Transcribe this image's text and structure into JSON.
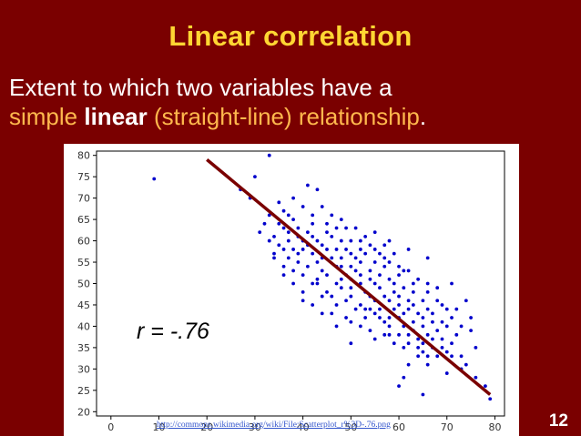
{
  "slide": {
    "title": "Linear correlation",
    "subtitle_part1": "Extent to which two variables have a",
    "subtitle_simple": "simple ",
    "subtitle_linear": "linear",
    "subtitle_rest": " (straight-line) relationship",
    "subtitle_period": ".",
    "r_label": "r = -.76",
    "source": "http://commons.wikimedia.org/wiki/File:Scatterplot_r%3D-.76.png",
    "slide_number": "12",
    "colors": {
      "background": "#7a0000",
      "title": "#ffd633",
      "accent": "#ffb84d",
      "points": "#0000cc",
      "fit_line": "#7a0000"
    }
  },
  "chart_data": {
    "type": "scatter",
    "xlim": [
      -3,
      82
    ],
    "ylim": [
      19,
      81
    ],
    "xticks": [
      0,
      10,
      20,
      30,
      40,
      50,
      60,
      70,
      80
    ],
    "yticks": [
      20,
      25,
      30,
      35,
      40,
      45,
      50,
      55,
      60,
      65,
      70,
      75,
      80
    ],
    "grid": false,
    "fit_line": {
      "x": [
        20,
        79
      ],
      "y": [
        79,
        24
      ]
    },
    "points": [
      [
        9,
        74.5
      ],
      [
        33,
        80
      ],
      [
        30,
        75
      ],
      [
        27,
        72
      ],
      [
        29,
        70
      ],
      [
        35,
        69
      ],
      [
        33,
        66
      ],
      [
        32,
        64
      ],
      [
        38,
        65
      ],
      [
        41,
        73
      ],
      [
        43,
        72
      ],
      [
        40,
        68
      ],
      [
        42,
        66
      ],
      [
        36,
        63
      ],
      [
        34,
        61
      ],
      [
        35,
        59
      ],
      [
        37,
        62
      ],
      [
        39,
        61
      ],
      [
        38,
        58
      ],
      [
        37,
        56
      ],
      [
        36,
        54
      ],
      [
        39,
        55
      ],
      [
        40,
        58
      ],
      [
        40,
        60
      ],
      [
        41,
        62
      ],
      [
        42,
        64
      ],
      [
        43,
        60
      ],
      [
        42,
        57
      ],
      [
        44,
        59
      ],
      [
        44,
        56
      ],
      [
        45,
        58
      ],
      [
        45,
        62
      ],
      [
        46,
        61
      ],
      [
        47,
        63
      ],
      [
        47,
        58
      ],
      [
        48,
        60
      ],
      [
        48,
        56
      ],
      [
        48,
        54
      ],
      [
        49,
        52
      ],
      [
        49,
        58
      ],
      [
        50,
        57
      ],
      [
        50,
        54
      ],
      [
        50,
        51
      ],
      [
        50,
        49
      ],
      [
        51,
        56
      ],
      [
        51,
        53
      ],
      [
        52,
        55
      ],
      [
        52,
        52
      ],
      [
        52,
        50
      ],
      [
        53,
        57
      ],
      [
        53,
        48
      ],
      [
        54,
        53
      ],
      [
        54,
        51
      ],
      [
        54,
        47
      ],
      [
        55,
        55
      ],
      [
        55,
        50
      ],
      [
        55,
        46
      ],
      [
        56,
        52
      ],
      [
        56,
        49
      ],
      [
        56,
        44
      ],
      [
        57,
        54
      ],
      [
        57,
        47
      ],
      [
        58,
        51
      ],
      [
        58,
        46
      ],
      [
        58,
        42
      ],
      [
        59,
        50
      ],
      [
        59,
        48
      ],
      [
        59,
        44
      ],
      [
        60,
        47
      ],
      [
        60,
        45
      ],
      [
        60,
        42
      ],
      [
        61,
        49
      ],
      [
        61,
        43
      ],
      [
        61,
        40
      ],
      [
        62,
        46
      ],
      [
        62,
        44
      ],
      [
        62,
        38
      ],
      [
        63,
        45
      ],
      [
        63,
        41
      ],
      [
        63,
        39
      ],
      [
        64,
        43
      ],
      [
        64,
        37
      ],
      [
        65,
        42
      ],
      [
        65,
        40
      ],
      [
        65,
        36
      ],
      [
        66,
        44
      ],
      [
        66,
        38
      ],
      [
        67,
        41
      ],
      [
        67,
        35
      ],
      [
        68,
        39
      ],
      [
        68,
        33
      ],
      [
        69,
        37
      ],
      [
        70,
        40
      ],
      [
        70,
        34
      ],
      [
        71,
        36
      ],
      [
        72,
        38
      ],
      [
        73,
        33
      ],
      [
        75,
        39
      ],
      [
        76,
        35
      ],
      [
        74,
        31
      ],
      [
        70,
        29
      ],
      [
        62,
        31
      ],
      [
        65,
        34
      ],
      [
        57,
        38
      ],
      [
        54,
        39
      ],
      [
        50,
        41
      ],
      [
        46,
        43
      ],
      [
        44,
        47
      ],
      [
        43,
        50
      ],
      [
        40,
        48
      ],
      [
        45,
        52
      ],
      [
        47,
        45
      ],
      [
        48,
        51
      ],
      [
        53,
        44
      ],
      [
        58,
        40
      ],
      [
        60,
        52
      ],
      [
        63,
        48
      ],
      [
        66,
        50
      ],
      [
        68,
        46
      ],
      [
        70,
        44
      ],
      [
        71,
        50
      ],
      [
        66,
        56
      ],
      [
        62,
        58
      ],
      [
        58,
        60
      ],
      [
        55,
        62
      ],
      [
        52,
        60
      ],
      [
        49,
        63
      ],
      [
        46,
        66
      ],
      [
        44,
        68
      ],
      [
        38,
        70
      ],
      [
        36,
        67
      ],
      [
        31,
        62
      ],
      [
        34,
        57
      ],
      [
        38,
        53
      ],
      [
        41,
        54
      ],
      [
        43,
        51
      ],
      [
        45,
        48
      ],
      [
        47,
        50
      ],
      [
        49,
        46
      ],
      [
        51,
        44
      ],
      [
        53,
        42
      ],
      [
        55,
        43
      ],
      [
        57,
        41
      ],
      [
        59,
        36
      ],
      [
        61,
        35
      ],
      [
        64,
        33
      ],
      [
        66,
        31
      ],
      [
        61,
        28
      ],
      [
        50,
        36
      ],
      [
        47,
        40
      ],
      [
        46,
        56
      ],
      [
        44,
        53
      ],
      [
        42,
        50
      ],
      [
        40,
        52
      ],
      [
        36,
        58
      ],
      [
        37,
        60
      ],
      [
        39,
        57
      ],
      [
        41,
        59
      ],
      [
        43,
        55
      ],
      [
        50,
        60
      ],
      [
        52,
        58
      ],
      [
        54,
        59
      ],
      [
        56,
        57
      ],
      [
        57,
        59
      ],
      [
        58,
        55
      ],
      [
        60,
        54
      ],
      [
        62,
        53
      ],
      [
        64,
        51
      ],
      [
        66,
        48
      ],
      [
        68,
        49
      ],
      [
        69,
        45
      ],
      [
        72,
        44
      ],
      [
        74,
        46
      ],
      [
        75,
        42
      ],
      [
        73,
        40
      ],
      [
        71,
        42
      ],
      [
        69,
        41
      ],
      [
        67,
        43
      ],
      [
        65,
        46
      ],
      [
        63,
        50
      ],
      [
        61,
        53
      ],
      [
        59,
        57
      ],
      [
        57,
        56
      ],
      [
        55,
        58
      ],
      [
        53,
        61
      ],
      [
        51,
        63
      ],
      [
        48,
        65
      ],
      [
        45,
        64
      ],
      [
        42,
        61
      ],
      [
        39,
        63
      ],
      [
        37,
        66
      ],
      [
        35,
        64
      ],
      [
        33,
        60
      ],
      [
        34,
        56
      ],
      [
        36,
        52
      ],
      [
        38,
        50
      ],
      [
        40,
        46
      ],
      [
        42,
        45
      ],
      [
        44,
        43
      ],
      [
        46,
        47
      ],
      [
        48,
        49
      ],
      [
        50,
        47
      ],
      [
        52,
        45
      ],
      [
        54,
        44
      ],
      [
        56,
        42
      ],
      [
        58,
        38
      ],
      [
        60,
        38
      ],
      [
        62,
        36
      ],
      [
        64,
        35
      ],
      [
        66,
        33
      ],
      [
        67,
        37
      ],
      [
        69,
        35
      ],
      [
        71,
        33
      ],
      [
        73,
        30
      ],
      [
        76,
        28
      ],
      [
        78,
        26
      ],
      [
        79,
        23
      ],
      [
        60,
        26
      ],
      [
        65,
        24
      ],
      [
        55,
        37
      ],
      [
        52,
        40
      ],
      [
        49,
        42
      ],
      [
        47,
        54
      ]
    ]
  }
}
